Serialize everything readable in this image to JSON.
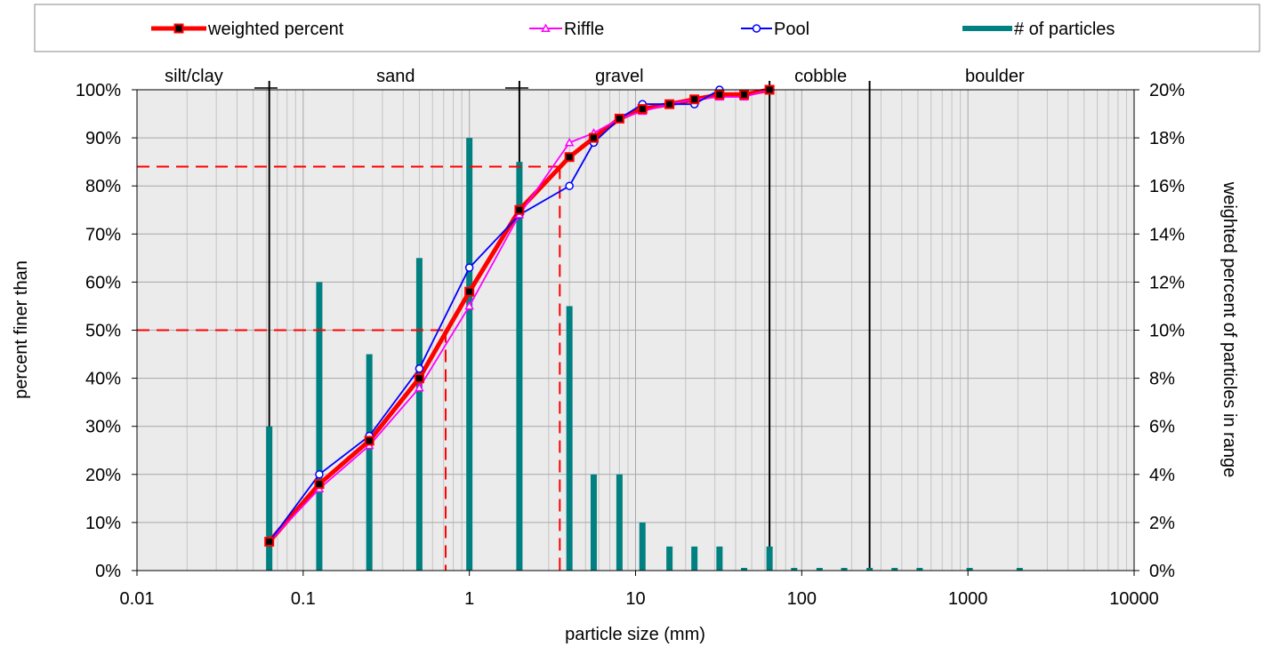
{
  "chart_data": {
    "type": "line",
    "xscale": "log",
    "xlim": [
      0.01,
      10000
    ],
    "ylim": [
      0,
      1
    ],
    "y2lim": [
      0,
      0.2
    ],
    "grid": true,
    "legend_placement": "top",
    "xlabel": "particle size (mm)",
    "ylabel": "percent finer than",
    "y2label": "weighted percent of particles in range",
    "x_ticks": [
      {
        "value": 0.01,
        "label": "0.01"
      },
      {
        "value": 0.1,
        "label": "0.1"
      },
      {
        "value": 1,
        "label": "1"
      },
      {
        "value": 10,
        "label": "10"
      },
      {
        "value": 100,
        "label": "100"
      },
      {
        "value": 1000,
        "label": "1000"
      },
      {
        "value": 10000,
        "label": "10000"
      }
    ],
    "y_ticks": [
      {
        "value": 0,
        "label": "0%"
      },
      {
        "value": 0.1,
        "label": "10%"
      },
      {
        "value": 0.2,
        "label": "20%"
      },
      {
        "value": 0.3,
        "label": "30%"
      },
      {
        "value": 0.4,
        "label": "40%"
      },
      {
        "value": 0.5,
        "label": "50%"
      },
      {
        "value": 0.6,
        "label": "60%"
      },
      {
        "value": 0.7,
        "label": "70%"
      },
      {
        "value": 0.8,
        "label": "80%"
      },
      {
        "value": 0.9,
        "label": "90%"
      },
      {
        "value": 1.0,
        "label": "100%"
      }
    ],
    "y2_ticks": [
      {
        "value": 0,
        "label": "0%"
      },
      {
        "value": 0.02,
        "label": "2%"
      },
      {
        "value": 0.04,
        "label": "4%"
      },
      {
        "value": 0.06,
        "label": "6%"
      },
      {
        "value": 0.08,
        "label": "8%"
      },
      {
        "value": 0.1,
        "label": "10%"
      },
      {
        "value": 0.12,
        "label": "12%"
      },
      {
        "value": 0.14,
        "label": "14%"
      },
      {
        "value": 0.16,
        "label": "16%"
      },
      {
        "value": 0.18,
        "label": "18%"
      },
      {
        "value": 0.2,
        "label": "20%"
      }
    ],
    "size_classes": [
      {
        "label": "silt/clay",
        "x": 0.022
      },
      {
        "label": "sand",
        "x": 0.36
      },
      {
        "label": "gravel",
        "x": 8
      },
      {
        "label": "cobble",
        "x": 130
      },
      {
        "label": "boulder",
        "x": 1450
      }
    ],
    "class_boundaries": [
      0.0625,
      2,
      64,
      256
    ],
    "series": [
      {
        "name": "weighted percent",
        "color": "#ff0000",
        "marker": "square",
        "x": [
          0.0625,
          0.125,
          0.25,
          0.5,
          1,
          2,
          4,
          5.6,
          8,
          11,
          16,
          22.6,
          32,
          45,
          64
        ],
        "y": [
          0.06,
          0.18,
          0.27,
          0.4,
          0.58,
          0.75,
          0.86,
          0.9,
          0.94,
          0.96,
          0.97,
          0.98,
          0.99,
          0.99,
          1.0
        ]
      },
      {
        "name": "Riffle",
        "color": "#ff00ff",
        "marker": "triangle",
        "x": [
          0.0625,
          0.125,
          0.25,
          0.5,
          1,
          2,
          4,
          5.6,
          8,
          11,
          16,
          22.6,
          32,
          45,
          64
        ],
        "y": [
          0.06,
          0.17,
          0.26,
          0.38,
          0.55,
          0.74,
          0.89,
          0.91,
          0.94,
          0.955,
          0.97,
          0.98,
          0.985,
          0.985,
          1.0
        ]
      },
      {
        "name": "Pool",
        "color": "#0000ff",
        "marker": "circle",
        "x": [
          0.0625,
          0.125,
          0.25,
          0.5,
          1,
          2,
          4,
          5.6,
          8,
          11,
          16,
          22.6,
          32
        ],
        "y": [
          0.06,
          0.2,
          0.28,
          0.42,
          0.63,
          0.74,
          0.8,
          0.89,
          0.94,
          0.97,
          0.97,
          0.97,
          1.0
        ]
      },
      {
        "name": "# of particles",
        "color": "#008080",
        "type": "bar",
        "axis": "right",
        "x": [
          0.0625,
          0.125,
          0.25,
          0.5,
          1,
          2,
          4,
          5.6,
          8,
          11,
          16,
          22.6,
          32,
          45,
          64,
          90,
          128,
          180,
          256,
          362,
          512,
          1024,
          2048
        ],
        "y": [
          0.06,
          0.12,
          0.09,
          0.13,
          0.18,
          0.17,
          0.11,
          0.04,
          0.04,
          0.02,
          0.01,
          0.01,
          0.01,
          0,
          0.01,
          0,
          0,
          0,
          0,
          0,
          0,
          0,
          0
        ]
      }
    ],
    "reference_lines": [
      {
        "y": 0.84,
        "x": 3.5,
        "color": "#ff0000"
      },
      {
        "y": 0.5,
        "x": 0.72,
        "color": "#ff0000"
      }
    ]
  }
}
